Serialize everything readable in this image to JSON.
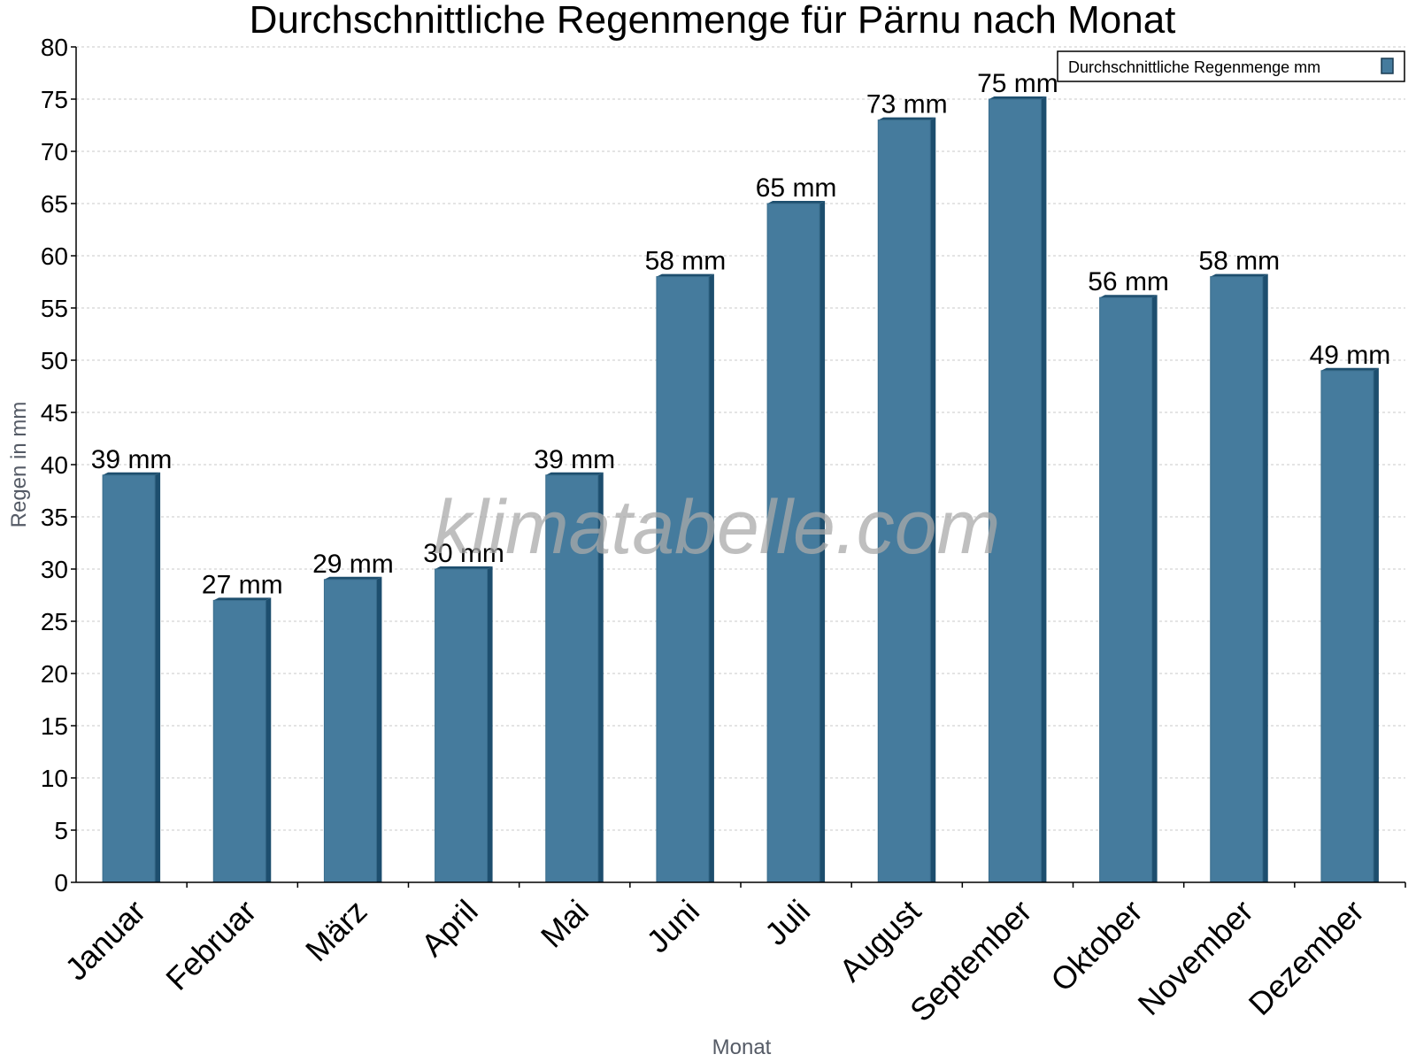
{
  "chart_data": {
    "type": "bar",
    "title": "Durchschnittliche Regenmenge für Pärnu nach Monat",
    "xlabel": "Monat",
    "ylabel": "Regen in mm",
    "categories": [
      "Januar",
      "Februar",
      "März",
      "April",
      "Mai",
      "Juni",
      "Juli",
      "August",
      "September",
      "Oktober",
      "November",
      "Dezember"
    ],
    "series": [
      {
        "name": "Durchschnittliche Regenmenge mm",
        "values": [
          39,
          27,
          29,
          30,
          39,
          58,
          65,
          73,
          75,
          56,
          58,
          49
        ],
        "color": "#457b9d"
      }
    ],
    "data_labels": [
      "39 mm",
      "27 mm",
      "29 mm",
      "30 mm",
      "39 mm",
      "58 mm",
      "65 mm",
      "73 mm",
      "75 mm",
      "56 mm",
      "58 mm",
      "49 mm"
    ],
    "ylim": [
      0,
      80
    ],
    "yticks": [
      "0",
      "5",
      "10",
      "15",
      "20",
      "25",
      "30",
      "35",
      "40",
      "45",
      "50",
      "55",
      "60",
      "65",
      "70",
      "75",
      "80"
    ],
    "grid": true,
    "legend_position": "top-right",
    "watermark": "klimatabelle.com"
  }
}
